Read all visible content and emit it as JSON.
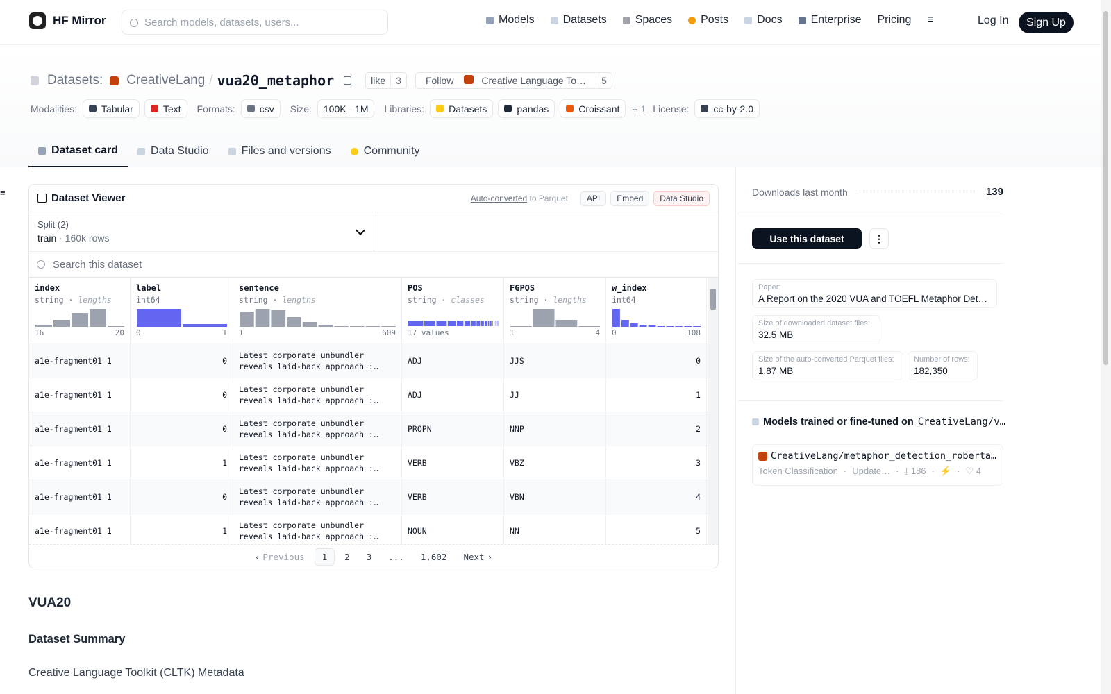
{
  "header": {
    "brand": "HF Mirror",
    "search_placeholder": "Search models, datasets, users...",
    "nav": [
      "Models",
      "Datasets",
      "Spaces",
      "Posts",
      "Docs",
      "Enterprise",
      "Pricing"
    ],
    "login": "Log In",
    "signup": "Sign Up"
  },
  "dataset": {
    "section": "Datasets:",
    "owner": "CreativeLang",
    "separator": "/",
    "name": "vua20_metaphor",
    "like": "like",
    "likes": 3,
    "follow": "Follow",
    "follow_org": "Creative Language To…",
    "followers": 5,
    "tags": [
      {
        "label": "Modalities:",
        "items": [
          "Tabular",
          "Text"
        ]
      },
      {
        "label": "Formats:",
        "items": [
          "csv"
        ]
      },
      {
        "label": "Size:",
        "items": [
          "100K - 1M"
        ]
      },
      {
        "label": "Libraries:",
        "items": [
          "Datasets",
          "pandas",
          "Croissant"
        ],
        "more": "+ 1"
      },
      {
        "label": "License:",
        "items": [
          "cc-by-2.0"
        ]
      }
    ]
  },
  "tabs": [
    "Dataset card",
    "Data Studio",
    "Files and versions",
    "Community"
  ],
  "viewer": {
    "title": "Dataset Viewer",
    "auto_converted": "Auto-converted",
    "to_parquet": "to Parquet",
    "buttons": [
      "API",
      "Embed",
      "Data Studio"
    ],
    "split_label": "Split (2)",
    "split": "train",
    "split_rows": "160k rows",
    "search_placeholder": "Search this dataset",
    "columns": [
      {
        "name": "index",
        "type": "string",
        "stat": "lengths",
        "min": "16",
        "max": "20",
        "hist": [
          3,
          10,
          20,
          26,
          1
        ],
        "color": "#9ca3af"
      },
      {
        "name": "label",
        "type": "int64",
        "min": "0",
        "max": "1",
        "hist": [
          26,
          4
        ],
        "color": "#6366f1"
      },
      {
        "name": "sentence",
        "type": "string",
        "stat": "lengths",
        "min": "1",
        "max": "609",
        "hist": [
          22,
          26,
          24,
          14,
          7,
          3,
          1,
          1,
          1,
          1
        ],
        "color": "#9ca3af"
      },
      {
        "name": "POS",
        "type": "string",
        "stat": "classes",
        "summary": "17 values",
        "hist": [
          22,
          16,
          15,
          12,
          10,
          9,
          7,
          6,
          5,
          4,
          3,
          3,
          2,
          2,
          2,
          1,
          1
        ],
        "color": "#6366f1"
      },
      {
        "name": "FGPOS",
        "type": "string",
        "stat": "lengths",
        "min": "1",
        "max": "4",
        "hist": [
          1,
          26,
          10,
          1
        ],
        "color": "#9ca3af"
      },
      {
        "name": "w_index",
        "type": "int64",
        "min": "0",
        "max": "108",
        "hist": [
          26,
          10,
          5,
          3,
          2,
          1,
          1,
          1,
          1,
          1
        ],
        "color": "#6366f1"
      }
    ],
    "rows": [
      [
        "a1e-fragment01 1",
        0,
        "Latest corporate unbundler reveals laid-back approach :…",
        "ADJ",
        "JJS",
        0
      ],
      [
        "a1e-fragment01 1",
        0,
        "Latest corporate unbundler reveals laid-back approach :…",
        "ADJ",
        "JJ",
        1
      ],
      [
        "a1e-fragment01 1",
        0,
        "Latest corporate unbundler reveals laid-back approach :…",
        "PROPN",
        "NNP",
        2
      ],
      [
        "a1e-fragment01 1",
        1,
        "Latest corporate unbundler reveals laid-back approach :…",
        "VERB",
        "VBZ",
        3
      ],
      [
        "a1e-fragment01 1",
        0,
        "Latest corporate unbundler reveals laid-back approach :…",
        "VERB",
        "VBN",
        4
      ],
      [
        "a1e-fragment01 1",
        1,
        "Latest corporate unbundler reveals laid-back approach :…",
        "NOUN",
        "NN",
        5
      ]
    ],
    "pagination": [
      "Previous",
      "1",
      "2",
      "3",
      "...",
      "1,602",
      "Next"
    ]
  },
  "card": {
    "heading": "VUA20",
    "subheading": "Dataset Summary",
    "text": "Creative Language Toolkit (CLTK) Metadata"
  },
  "sidebar": {
    "downloads_label": "Downloads last month",
    "downloads": 139,
    "use_button": "Use this dataset",
    "paper_label": "Paper:",
    "paper": "A Report on the 2020 VUA and TOEFL Metaphor Detect…",
    "download_size_label": "Size of downloaded dataset files:",
    "download_size": "32.5 MB",
    "parquet_size_label": "Size of the auto-converted Parquet files:",
    "parquet_size": "1.87 MB",
    "rows_label": "Number of rows:",
    "rows": "182,350",
    "models_heading": "Models trained or fine-tuned on",
    "models_dataset": "CreativeLang/v…",
    "model": {
      "name": "CreativeLang/metaphor_detection_roberta…",
      "task": "Token Classification",
      "updated": "Update…",
      "downloads": 186,
      "likes": 4
    }
  }
}
